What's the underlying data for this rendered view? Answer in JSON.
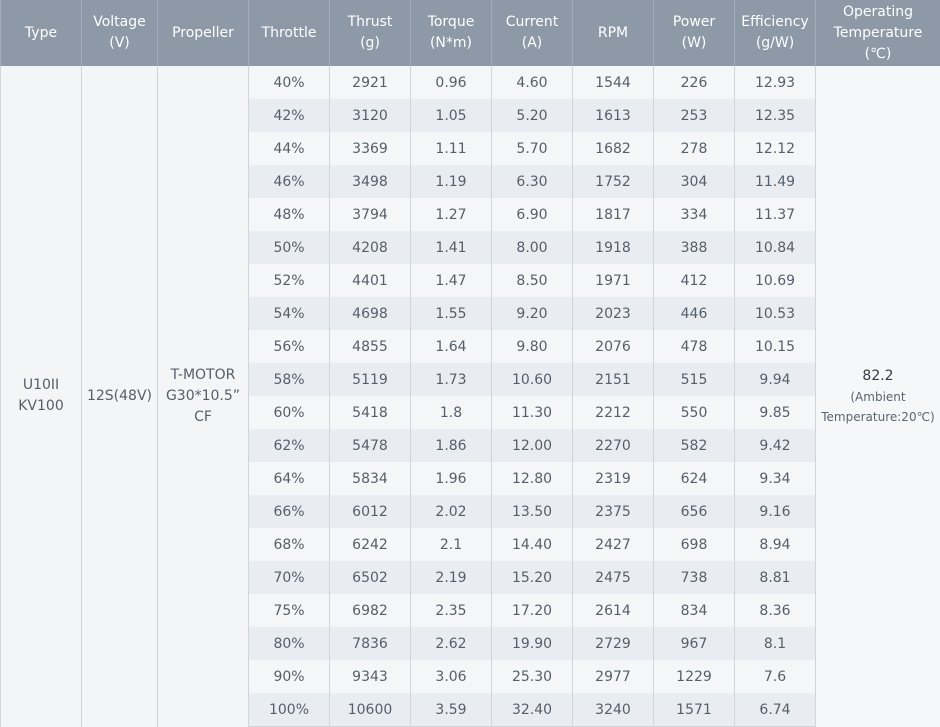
{
  "headers": [
    {
      "name": "type",
      "line1": "Type",
      "line2": ""
    },
    {
      "name": "voltage",
      "line1": "Voltage",
      "line2": "(V)"
    },
    {
      "name": "propeller",
      "line1": "Propeller",
      "line2": ""
    },
    {
      "name": "throttle",
      "line1": "Throttle",
      "line2": ""
    },
    {
      "name": "thrust",
      "line1": "Thrust",
      "line2": "(g)"
    },
    {
      "name": "torque",
      "line1": "Torque",
      "line2": "(N*m)"
    },
    {
      "name": "current",
      "line1": "Current",
      "line2": "(A)"
    },
    {
      "name": "rpm",
      "line1": "RPM",
      "line2": ""
    },
    {
      "name": "power",
      "line1": "Power",
      "line2": "(W)"
    },
    {
      "name": "efficiency",
      "line1": "Efficiency",
      "line2": "(g/W)"
    },
    {
      "name": "operating-temperature",
      "line1": "Operating",
      "line2": "Temperature",
      "line3": "(℃)"
    }
  ],
  "type": {
    "line1": "U10II",
    "line2": "KV100"
  },
  "voltage": "12S(48V)",
  "propeller": {
    "line1": "T-MOTOR",
    "line2": "G30*10.5”",
    "line3": "CF"
  },
  "temperature": {
    "value": "82.2",
    "line1": "(Ambient",
    "line2": "Temperature:20℃)"
  },
  "rows": [
    [
      "40%",
      "2921",
      "0.96",
      "4.60",
      "1544",
      "226",
      "12.93"
    ],
    [
      "42%",
      "3120",
      "1.05",
      "5.20",
      "1613",
      "253",
      "12.35"
    ],
    [
      "44%",
      "3369",
      "1.11",
      "5.70",
      "1682",
      "278",
      "12.12"
    ],
    [
      "46%",
      "3498",
      "1.19",
      "6.30",
      "1752",
      "304",
      "11.49"
    ],
    [
      "48%",
      "3794",
      "1.27",
      "6.90",
      "1817",
      "334",
      "11.37"
    ],
    [
      "50%",
      "4208",
      "1.41",
      "8.00",
      "1918",
      "388",
      "10.84"
    ],
    [
      "52%",
      "4401",
      "1.47",
      "8.50",
      "1971",
      "412",
      "10.69"
    ],
    [
      "54%",
      "4698",
      "1.55",
      "9.20",
      "2023",
      "446",
      "10.53"
    ],
    [
      "56%",
      "4855",
      "1.64",
      "9.80",
      "2076",
      "478",
      "10.15"
    ],
    [
      "58%",
      "5119",
      "1.73",
      "10.60",
      "2151",
      "515",
      "9.94"
    ],
    [
      "60%",
      "5418",
      "1.8",
      "11.30",
      "2212",
      "550",
      "9.85"
    ],
    [
      "62%",
      "5478",
      "1.86",
      "12.00",
      "2270",
      "582",
      "9.42"
    ],
    [
      "64%",
      "5834",
      "1.96",
      "12.80",
      "2319",
      "624",
      "9.34"
    ],
    [
      "66%",
      "6012",
      "2.02",
      "13.50",
      "2375",
      "656",
      "9.16"
    ],
    [
      "68%",
      "6242",
      "2.1",
      "14.40",
      "2427",
      "698",
      "8.94"
    ],
    [
      "70%",
      "6502",
      "2.19",
      "15.20",
      "2475",
      "738",
      "8.81"
    ],
    [
      "75%",
      "6982",
      "2.35",
      "17.20",
      "2614",
      "834",
      "8.36"
    ],
    [
      "80%",
      "7836",
      "2.62",
      "19.90",
      "2729",
      "967",
      "8.1"
    ],
    [
      "90%",
      "9343",
      "3.06",
      "25.30",
      "2977",
      "1229",
      "7.6"
    ],
    [
      "100%",
      "10600",
      "3.59",
      "32.40",
      "3240",
      "1571",
      "6.74"
    ]
  ],
  "colors": {
    "header_bg": "#8d99a6",
    "row_odd": "#f5f6f8",
    "row_even": "#e9edf1"
  }
}
